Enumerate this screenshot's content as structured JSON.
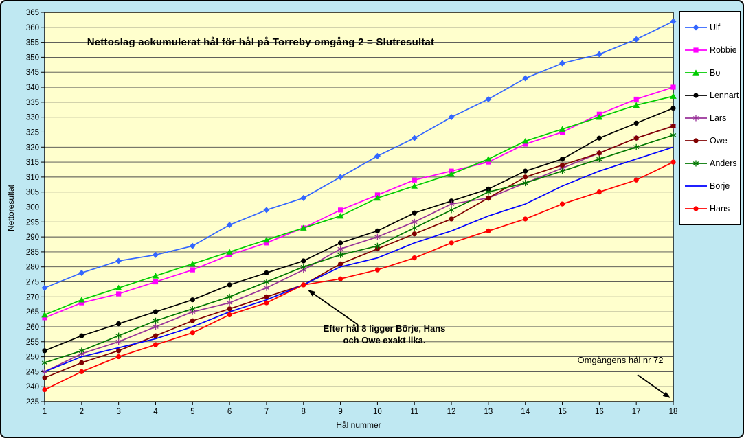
{
  "frame": {
    "background_color": "#bfe8f2",
    "plot_background_color": "#ffffcd",
    "gridline_color": "#4a4a4a",
    "axis_color": "#000000",
    "legend_border_color": "#000000",
    "legend_background_color": "#ffffff"
  },
  "chart_data": {
    "type": "line",
    "title": "Nettoslag ackumulerat hål för hål på Torreby omgång 2 = Slutresultat",
    "xlabel": "Hål nummer",
    "ylabel": "Nettoresultat",
    "x": [
      1,
      2,
      3,
      4,
      5,
      6,
      7,
      8,
      9,
      10,
      11,
      12,
      13,
      14,
      15,
      16,
      17,
      18
    ],
    "ylim": [
      235,
      365
    ],
    "ytick_step": 5,
    "grid": "horizontal",
    "legend_position": "right-outside",
    "series": [
      {
        "name": "Ulf",
        "color": "#3366ff",
        "marker": "diamond",
        "values": [
          273,
          278,
          282,
          284,
          287,
          294,
          299,
          303,
          310,
          317,
          323,
          330,
          336,
          343,
          348,
          351,
          356,
          362
        ]
      },
      {
        "name": "Robbie",
        "color": "#ff00ff",
        "marker": "square",
        "values": [
          263,
          268,
          271,
          275,
          279,
          284,
          288,
          293,
          299,
          304,
          309,
          312,
          315,
          321,
          325,
          331,
          336,
          340
        ]
      },
      {
        "name": "Bo",
        "color": "#00cc00",
        "marker": "triangle",
        "values": [
          264,
          269,
          273,
          277,
          281,
          285,
          289,
          293,
          297,
          303,
          307,
          311,
          316,
          322,
          326,
          330,
          334,
          337
        ]
      },
      {
        "name": "Lennart",
        "color": "#000000",
        "marker": "circle",
        "values": [
          252,
          257,
          261,
          265,
          269,
          274,
          278,
          282,
          288,
          292,
          298,
          302,
          306,
          312,
          316,
          323,
          328,
          333
        ]
      },
      {
        "name": "Lars",
        "color": "#993399",
        "marker": "star",
        "values": [
          245,
          251,
          255,
          260,
          265,
          268,
          273,
          279,
          286,
          290,
          295,
          301,
          303,
          308,
          313,
          318,
          323,
          327
        ]
      },
      {
        "name": "Owe",
        "color": "#800000",
        "marker": "circle",
        "values": [
          243,
          248,
          252,
          257,
          262,
          266,
          270,
          274,
          281,
          286,
          291,
          296,
          303,
          310,
          314,
          318,
          323,
          327
        ]
      },
      {
        "name": "Anders",
        "color": "#007700",
        "marker": "star",
        "values": [
          248,
          252,
          257,
          262,
          266,
          270,
          275,
          280,
          284,
          287,
          293,
          299,
          305,
          308,
          312,
          316,
          320,
          324
        ]
      },
      {
        "name": "Börje",
        "color": "#0000ff",
        "marker": "none",
        "values": [
          245,
          250,
          253,
          256,
          260,
          265,
          269,
          274,
          280,
          283,
          288,
          292,
          297,
          301,
          307,
          312,
          316,
          320
        ]
      },
      {
        "name": "Hans",
        "color": "#ff0000",
        "marker": "circle",
        "values": [
          239,
          245,
          250,
          254,
          258,
          264,
          268,
          274,
          276,
          279,
          283,
          288,
          292,
          296,
          301,
          305,
          309,
          315
        ]
      }
    ],
    "annotations": [
      {
        "line1": "Efter hål 8 ligger Börje, Hans",
        "line2": "och Owe exakt lika.",
        "arrow": {
          "from": [
            519,
            471
          ],
          "to": [
            446,
            420
          ]
        }
      },
      {
        "text": "Omgångens hål nr 72",
        "arrow": {
          "from": [
            926,
            544
          ],
          "to": [
            974,
            578
          ]
        }
      }
    ]
  }
}
